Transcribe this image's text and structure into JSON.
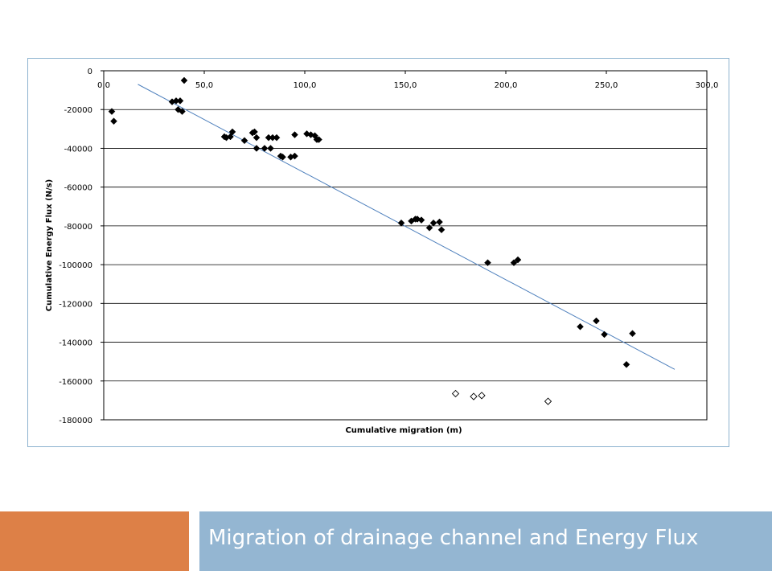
{
  "slide": {
    "title": "Migration of drainage channel and Energy Flux",
    "accent_color": "#dd8047",
    "title_bar_color": "#94b6d2",
    "title_text_color": "#ffffff"
  },
  "chart_data": {
    "type": "scatter",
    "title": "",
    "xlabel": "Cumulative migration (m)",
    "ylabel": "Cumulative Energy Flux (N/s)",
    "xlim": [
      0,
      300
    ],
    "ylim": [
      -180000,
      0
    ],
    "x_ticks": [
      "0,0",
      "50,0",
      "100,0",
      "150,0",
      "200,0",
      "250,0",
      "300,0"
    ],
    "y_ticks": [
      "0",
      "-20000",
      "-40000",
      "-60000",
      "-80000",
      "-100000",
      "-120000",
      "-140000",
      "-160000",
      "-180000"
    ],
    "x_tick_values": [
      0,
      50,
      100,
      150,
      200,
      250,
      300
    ],
    "y_tick_values": [
      0,
      -20000,
      -40000,
      -60000,
      -80000,
      -100000,
      -120000,
      -140000,
      -160000,
      -180000
    ],
    "x_axis_position": "top",
    "grid": "horizontal",
    "legend": "none",
    "series": [
      {
        "marker": "filled-diamond",
        "color": "#000000",
        "points": [
          [
            4,
            -21000
          ],
          [
            5,
            -26000
          ],
          [
            34,
            -16000
          ],
          [
            36,
            -15500
          ],
          [
            37,
            -20000
          ],
          [
            38,
            -15500
          ],
          [
            39,
            -21000
          ],
          [
            40,
            -5000
          ],
          [
            60,
            -34000
          ],
          [
            61,
            -34500
          ],
          [
            63,
            -34000
          ],
          [
            64,
            -31500
          ],
          [
            70,
            -36000
          ],
          [
            74,
            -32000
          ],
          [
            75,
            -31500
          ],
          [
            76,
            -34500
          ],
          [
            76,
            -40000
          ],
          [
            80,
            -40000
          ],
          [
            82,
            -34500
          ],
          [
            83,
            -40000
          ],
          [
            84,
            -34500
          ],
          [
            86,
            -34500
          ],
          [
            88,
            -44000
          ],
          [
            89,
            -44500
          ],
          [
            93,
            -44500
          ],
          [
            95,
            -44000
          ],
          [
            95,
            -33000
          ],
          [
            101,
            -32500
          ],
          [
            103,
            -33000
          ],
          [
            105,
            -33500
          ],
          [
            106,
            -35500
          ],
          [
            107,
            -35500
          ],
          [
            148,
            -78500
          ],
          [
            153,
            -77500
          ],
          [
            155,
            -76500
          ],
          [
            156,
            -76500
          ],
          [
            158,
            -77000
          ],
          [
            162,
            -81000
          ],
          [
            164,
            -78500
          ],
          [
            167,
            -78000
          ],
          [
            168,
            -82000
          ],
          [
            191,
            -99000
          ],
          [
            204,
            -99000
          ],
          [
            206,
            -97500
          ],
          [
            237,
            -132000
          ],
          [
            245,
            -129000
          ],
          [
            249,
            -136000
          ],
          [
            260,
            -151500
          ],
          [
            263,
            -135500
          ]
        ]
      },
      {
        "marker": "open-diamond",
        "color": "#000000",
        "points": [
          [
            175,
            -166500
          ],
          [
            184,
            -168000
          ],
          [
            188,
            -167500
          ],
          [
            221,
            -170500
          ]
        ]
      }
    ],
    "trendline": {
      "type": "linear",
      "color": "#4f81bd",
      "x": [
        17,
        284
      ],
      "y": [
        -7000,
        -154000
      ]
    }
  }
}
